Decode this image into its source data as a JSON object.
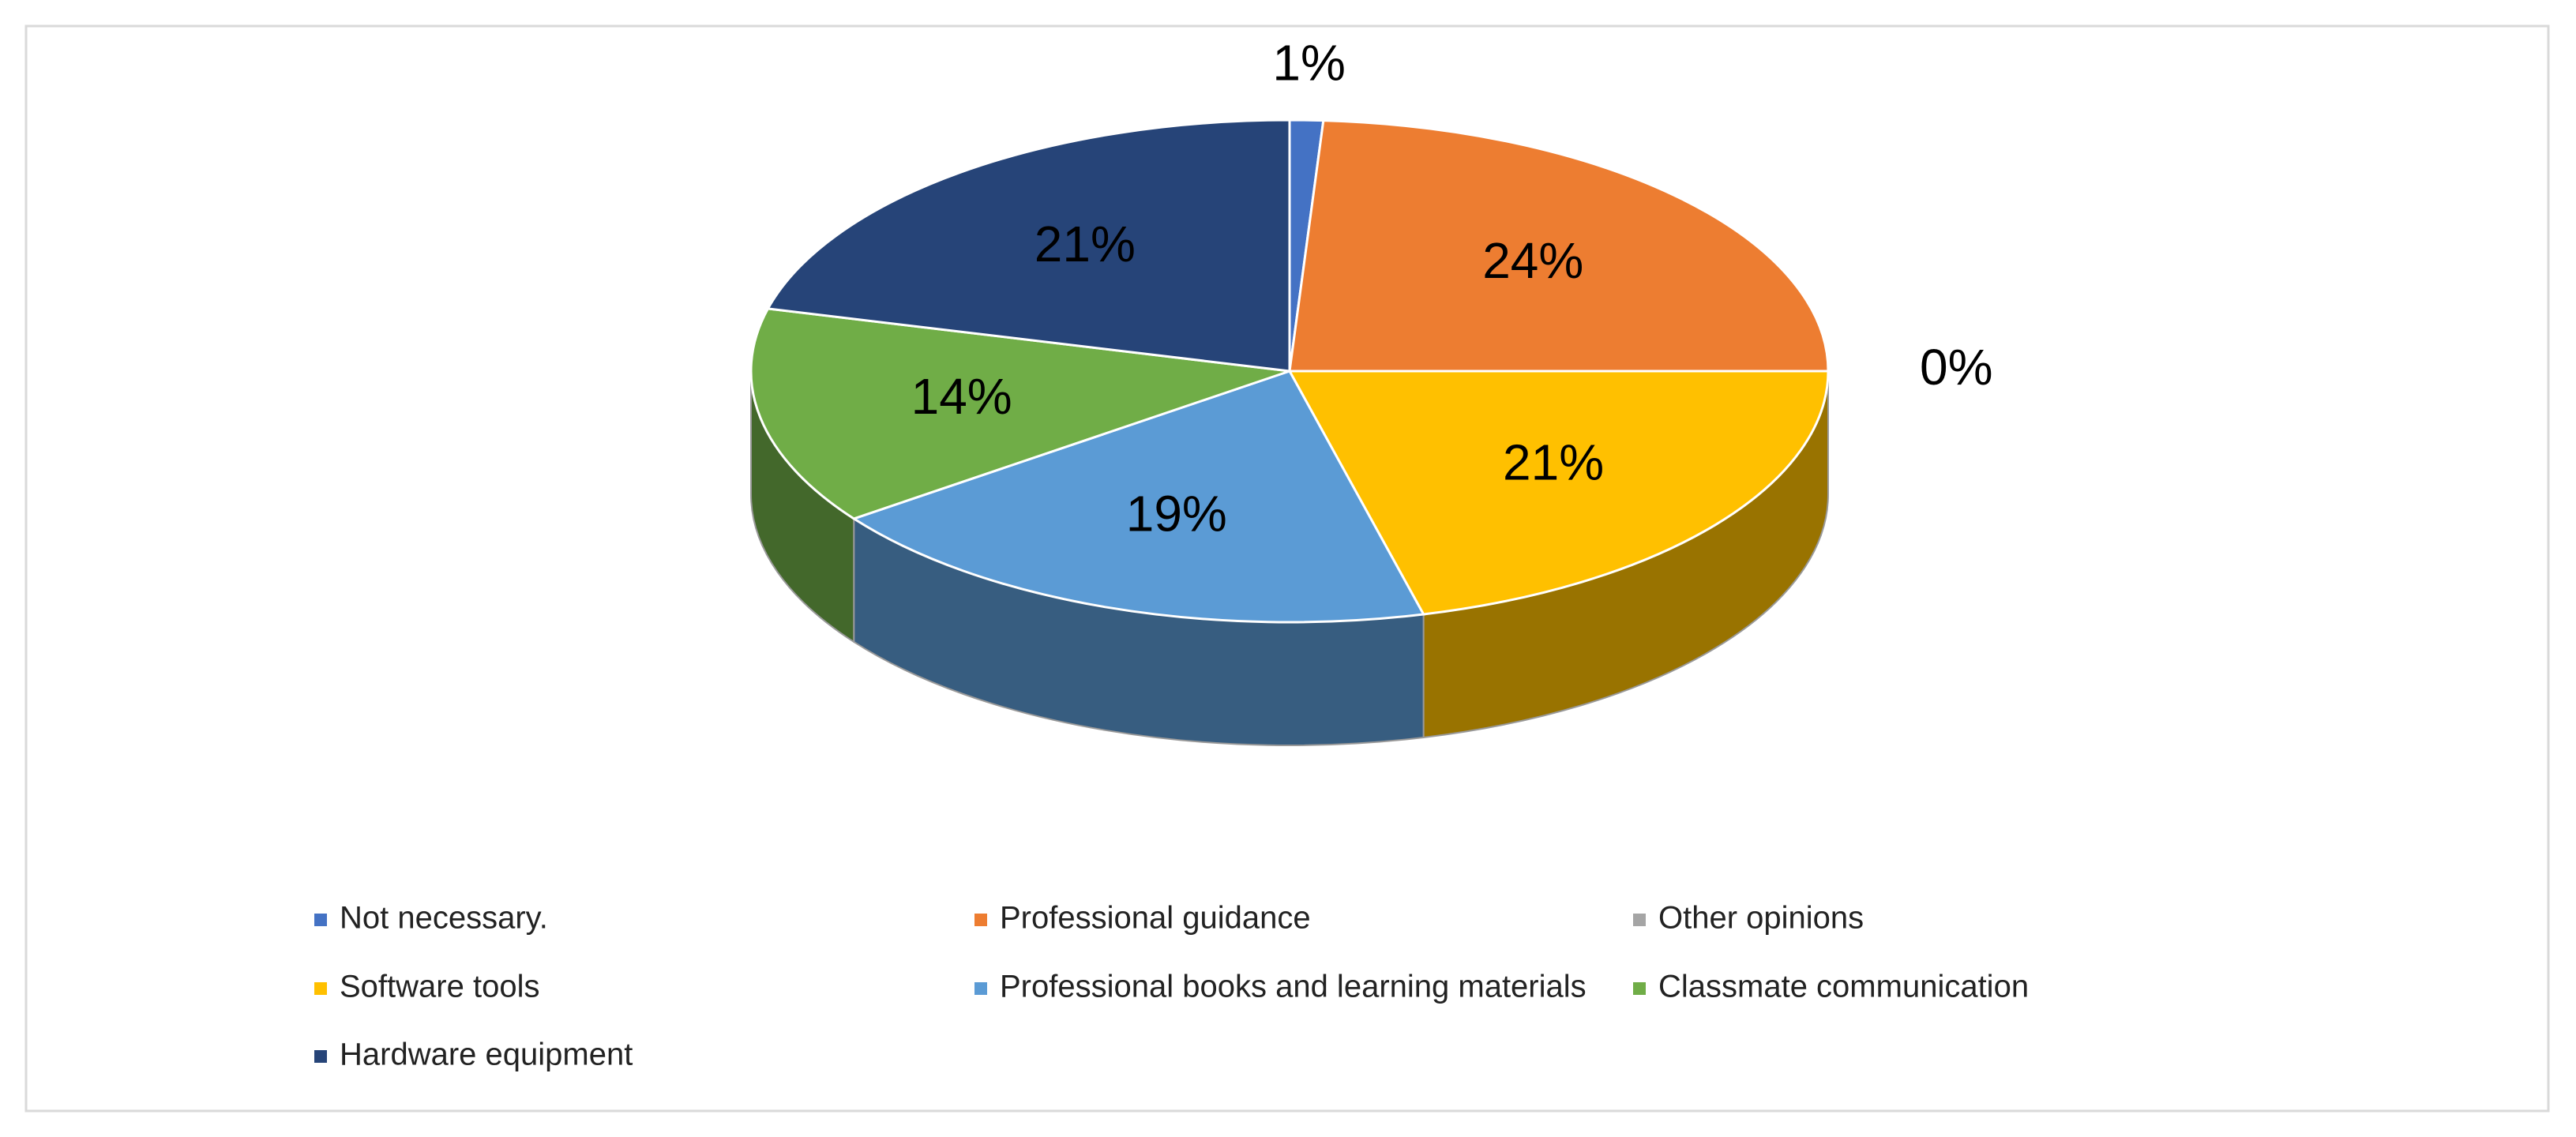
{
  "chart_data": {
    "type": "pie3d",
    "categories": [
      "Not necessary.",
      "Professional guidance",
      "Other opinions",
      "Software tools",
      "Professional books and learning materials",
      "Classmate communication",
      "Hardware equipment"
    ],
    "values": [
      1,
      24,
      0,
      21,
      19,
      14,
      21
    ],
    "value_labels": [
      "1%",
      "24%",
      "0%",
      "21%",
      "19%",
      "14%",
      "21%"
    ],
    "colors": [
      "#4472c4",
      "#ed7d31",
      "#a5a5a5",
      "#ffc000",
      "#5b9bd5",
      "#70ad47",
      "#264478"
    ],
    "legend": "bottom"
  }
}
